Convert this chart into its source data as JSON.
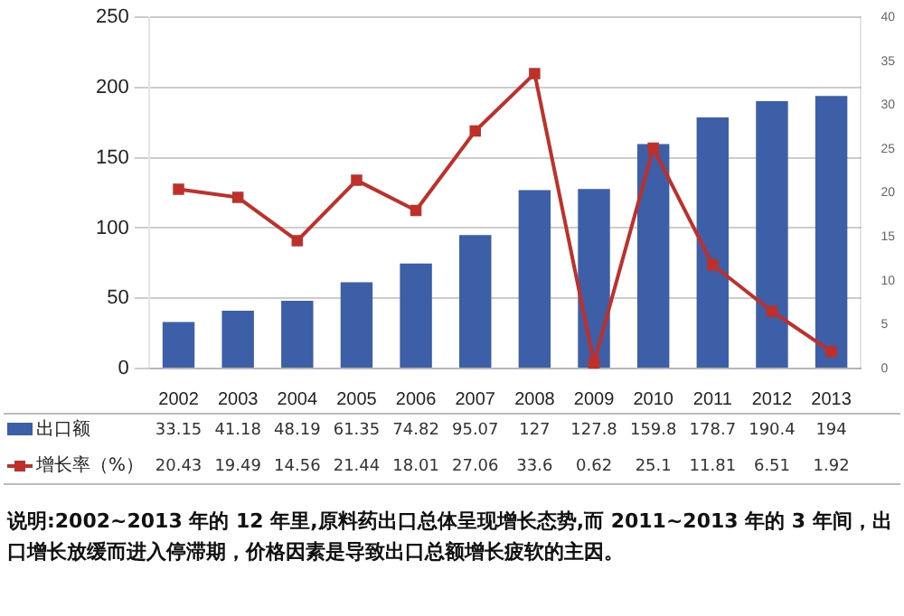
{
  "chart_data": {
    "type": "bar",
    "categories": [
      "2002",
      "2003",
      "2004",
      "2005",
      "2006",
      "2007",
      "2008",
      "2009",
      "2010",
      "2011",
      "2012",
      "2013"
    ],
    "series": [
      {
        "name": "出口额",
        "color": "#3d5fa8",
        "values": [
          33.15,
          41.18,
          48.19,
          61.35,
          74.82,
          95.07,
          127,
          127.8,
          159.8,
          178.7,
          190.4,
          194
        ]
      },
      {
        "name": "增长率（%）",
        "type": "line",
        "axis": "y2",
        "color": "#c0302a",
        "marker": "square",
        "values": [
          20.43,
          19.49,
          14.56,
          21.44,
          18.01,
          27.06,
          33.6,
          0.62,
          25.1,
          11.81,
          6.51,
          1.92
        ]
      }
    ],
    "ylim": [
      0,
      250
    ],
    "yticks": [
      0,
      50,
      100,
      150,
      200,
      250
    ],
    "y2lim": [
      0,
      40
    ],
    "y2ticks": [
      0,
      5,
      10,
      15,
      20,
      25,
      30,
      35,
      40
    ],
    "grid": "y",
    "legend": "bottom left",
    "data_labels": true,
    "annotations": [
      "说明:2002~2013 年的 12 年里,原料药出口总体呈现增长态势,而 2011~2013 年的 3 年间，出口增长放缓而进入停滞期，价格因素是导致出口总额增长疲软的主因。"
    ]
  }
}
